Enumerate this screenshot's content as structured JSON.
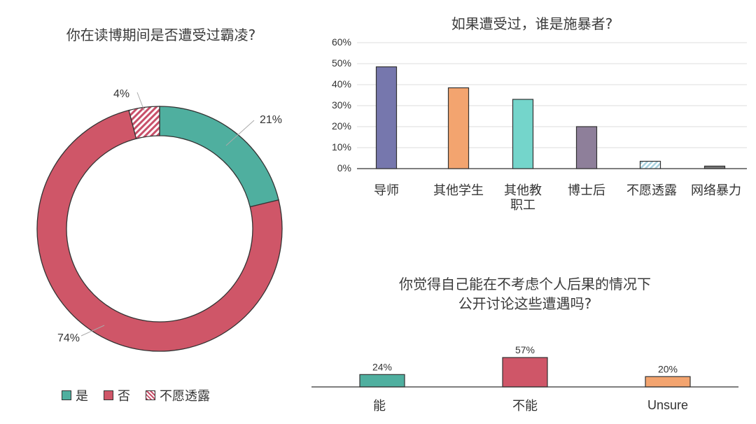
{
  "colors": {
    "teal": "#4faf9f",
    "red": "#cf5668",
    "hatch": "#c8506a",
    "purple": "#7677ad",
    "orange": "#f3a46f",
    "cyan": "#74d5cb",
    "mauve": "#8e7f9a",
    "light_hatch": "#a9d3e0",
    "gray": "#777777"
  },
  "chart_data": [
    {
      "type": "pie",
      "title": "你在读博期间是否遭受过霸凌?",
      "categories": [
        "是",
        "否",
        "不愿透露"
      ],
      "values": [
        21,
        74,
        4
      ],
      "labels": [
        "21%",
        "74%",
        "4%"
      ],
      "legend": {
        "placement": "bottom",
        "entries": [
          "是",
          "否",
          "不愿透露"
        ]
      }
    },
    {
      "type": "bar",
      "title": "如果遭受过，谁是施暴者?",
      "categories": [
        "导师",
        "其他学生",
        "其他教职工",
        "博士后",
        "不愿透露",
        "网络暴力"
      ],
      "category_lines": [
        [
          "导师"
        ],
        [
          "其他学生"
        ],
        [
          "其他教",
          "职工"
        ],
        [
          "博士后"
        ],
        [
          "不愿透露"
        ],
        [
          "网络暴力"
        ]
      ],
      "values": [
        48.5,
        38.5,
        33.0,
        20.0,
        3.5,
        1.2
      ],
      "ylim": [
        0,
        60
      ],
      "yticks": [
        "0%",
        "10%",
        "20%",
        "30%",
        "40%",
        "50%",
        "60%"
      ],
      "grid": true
    },
    {
      "type": "bar",
      "title_lines": [
        "你觉得自己能在不考虑个人后果的情况下",
        "公开讨论这些遭遇吗?"
      ],
      "categories": [
        "能",
        "不能",
        "Unsure"
      ],
      "values": [
        24,
        57,
        20
      ],
      "data_labels": [
        "24%",
        "57%",
        "20%"
      ]
    }
  ]
}
